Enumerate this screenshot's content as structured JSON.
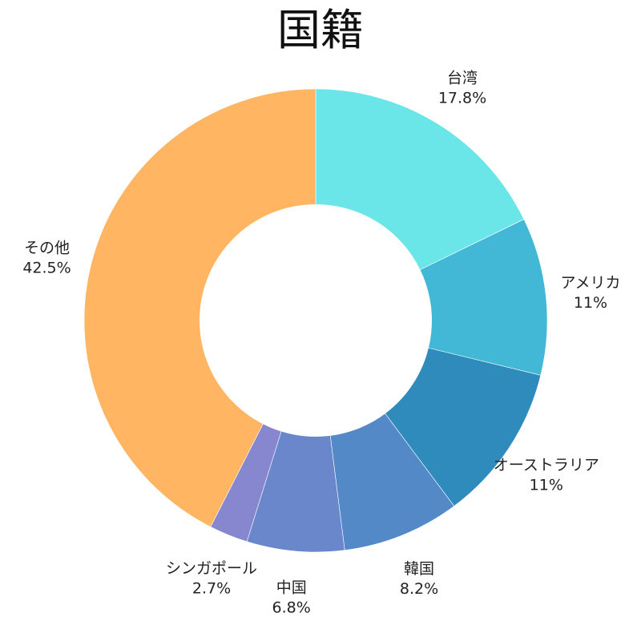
{
  "chart_data": {
    "type": "pie",
    "style": "donut",
    "title": "国籍",
    "slices": [
      {
        "label": "台湾",
        "value": 17.8,
        "pct_text": "17.8%",
        "color": "#6ae5e8"
      },
      {
        "label": "アメリカ",
        "value": 11.0,
        "pct_text": "11%",
        "color": "#42b7d6"
      },
      {
        "label": "オーストラリア",
        "value": 11.0,
        "pct_text": "11%",
        "color": "#2e8bbb"
      },
      {
        "label": "韓国",
        "value": 8.2,
        "pct_text": "8.2%",
        "color": "#5489c8"
      },
      {
        "label": "中国",
        "value": 6.8,
        "pct_text": "6.8%",
        "color": "#6b87cb"
      },
      {
        "label": "シンガポール",
        "value": 2.7,
        "pct_text": "2.7%",
        "color": "#8787cf"
      },
      {
        "label": "その他",
        "value": 42.5,
        "pct_text": "42.5%",
        "color": "#ffb562"
      }
    ],
    "start_position": "top",
    "direction": "clockwise"
  }
}
